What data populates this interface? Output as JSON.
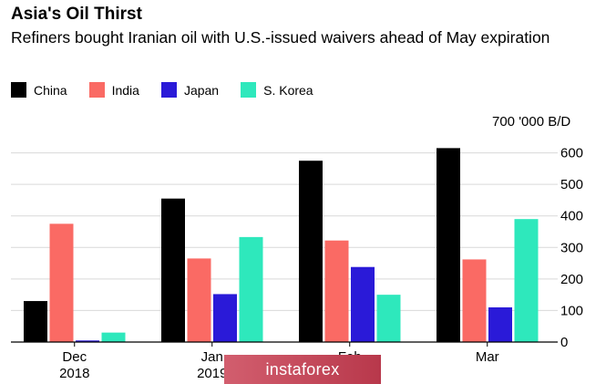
{
  "chart_data": {
    "type": "bar",
    "title": "Asia's Oil Thirst",
    "subtitle": "Refiners bought Iranian oil with U.S.-issued waivers ahead of May expiration",
    "unit_label": "700 '000 B/D",
    "categories": [
      "Dec 2018",
      "Jan 2019",
      "Feb",
      "Mar"
    ],
    "category_labels": [
      [
        "Dec",
        "2018"
      ],
      [
        "Jan",
        "2019"
      ],
      [
        "Feb",
        ""
      ],
      [
        "Mar",
        ""
      ]
    ],
    "series": [
      {
        "name": "China",
        "color": "#000000",
        "values": [
          130,
          455,
          575,
          615
        ]
      },
      {
        "name": "India",
        "color": "#fa6a64",
        "values": [
          375,
          265,
          322,
          262
        ]
      },
      {
        "name": "Japan",
        "color": "#2a1ad8",
        "values": [
          5,
          152,
          238,
          110
        ]
      },
      {
        "name": "S. Korea",
        "color": "#2ee8bc",
        "values": [
          30,
          333,
          150,
          390
        ]
      }
    ],
    "ylim": [
      0,
      700
    ],
    "yticks": [
      0,
      100,
      200,
      300,
      400,
      500,
      600
    ],
    "y_axis_side": "right",
    "grid": true,
    "legend_position": "top-left"
  },
  "watermark": {
    "text": "instaforex"
  }
}
